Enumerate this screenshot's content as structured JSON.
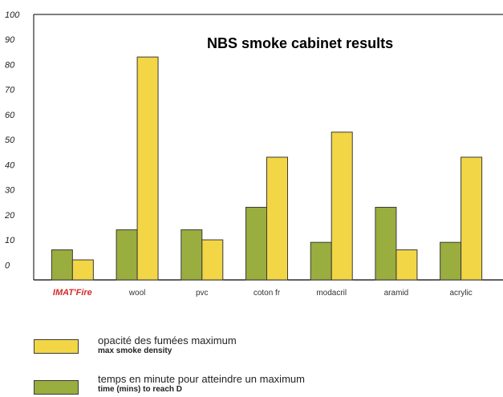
{
  "chart_data": {
    "type": "bar",
    "title": "NBS smoke cabinet results",
    "categories": [
      "IMAT'Fire",
      "wool",
      "pvc",
      "coton fr",
      "modacril",
      "aramid",
      "acrylic"
    ],
    "series": [
      {
        "name": "time (mins) to reach D",
        "color": "#9aad3f",
        "values": [
          6,
          14,
          14,
          23,
          9,
          23,
          9
        ]
      },
      {
        "name": "max smoke density",
        "color": "#f2d645",
        "values": [
          2,
          83,
          10,
          43,
          53,
          6,
          43
        ]
      }
    ],
    "ylim": [
      -6,
      100
    ],
    "yticks": [
      0,
      10,
      20,
      30,
      40,
      50,
      60,
      70,
      80,
      90,
      100
    ],
    "ytick_labels": [
      "0",
      "10",
      "20",
      "30",
      "40",
      "50",
      "60",
      "70",
      "80",
      "90",
      "100"
    ],
    "grid": false
  },
  "legend": [
    {
      "swatch_color": "#f2d645",
      "main": "opacité des fumées maximum",
      "sub": "max smoke density"
    },
    {
      "swatch_color": "#9aad3f",
      "main": "temps en minute pour atteindre un maximum",
      "sub": "time (mins) to reach D"
    }
  ],
  "colors": {
    "axis": "#000000",
    "brand_label": "#d42a2a"
  }
}
